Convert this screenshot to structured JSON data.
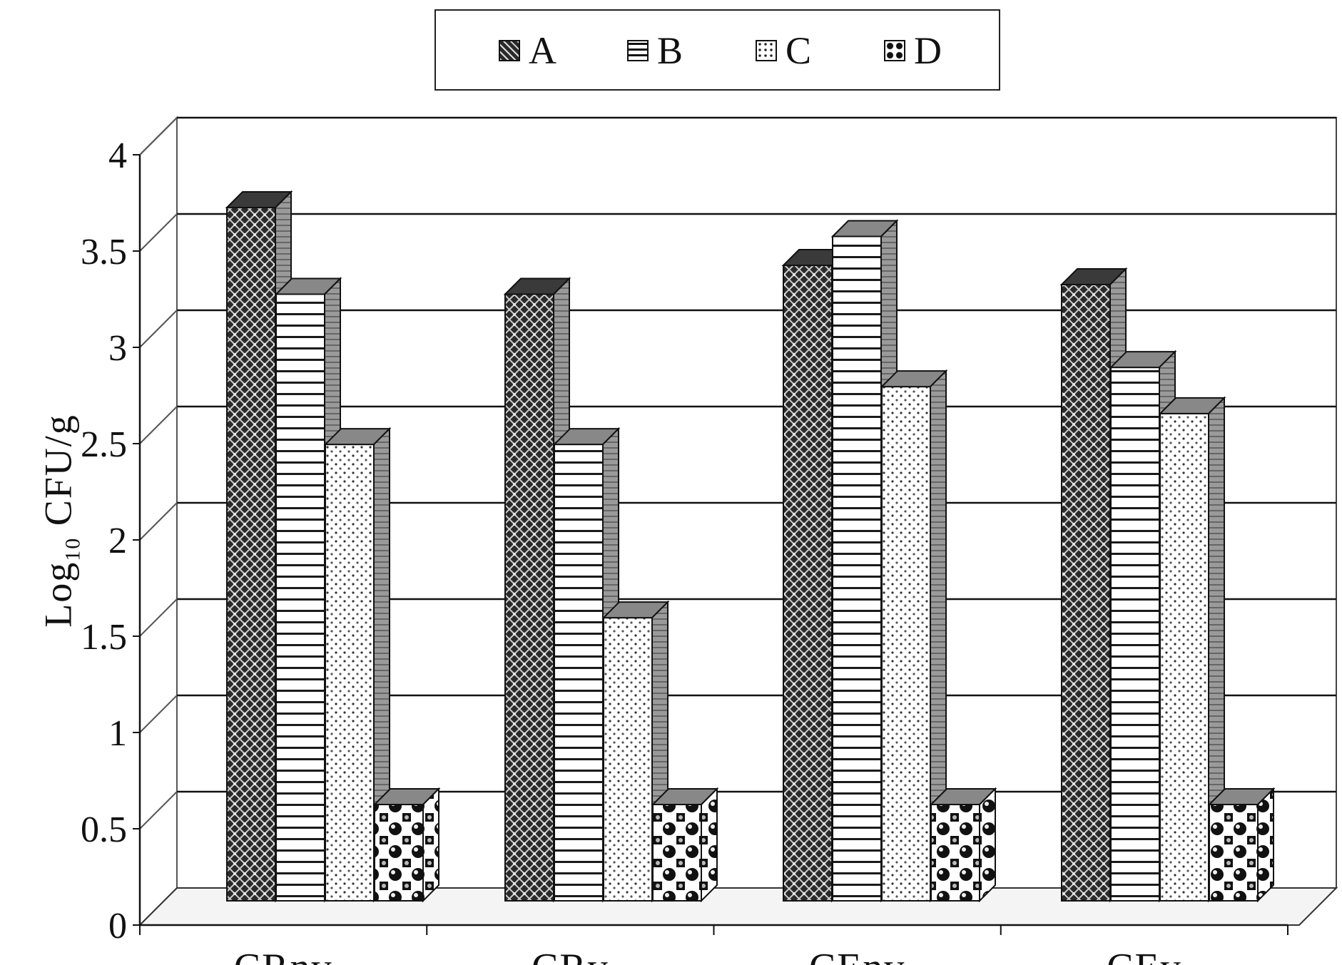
{
  "chart_data": {
    "type": "bar",
    "three_d": true,
    "ylabel": {
      "main": "Log",
      "sub": "10",
      "rest": " CFU/g"
    },
    "ylim": [
      0,
      4
    ],
    "yticks": [
      "0",
      "0.5",
      "1",
      "1.5",
      "2",
      "2.5",
      "3",
      "3.5",
      "4"
    ],
    "grid": true,
    "legend_position": "top-center",
    "categories": [
      "CRnv",
      "CRv",
      "CEnv",
      "CEv"
    ],
    "series": [
      {
        "name": "A",
        "values": [
          3.6,
          3.15,
          3.3,
          3.2
        ],
        "pattern": "dark-crosshatch"
      },
      {
        "name": "B",
        "values": [
          3.15,
          2.37,
          3.45,
          2.77
        ],
        "pattern": "horizontal-stripes"
      },
      {
        "name": "C",
        "values": [
          2.37,
          1.47,
          2.67,
          2.53
        ],
        "pattern": "dotted"
      },
      {
        "name": "D",
        "values": [
          0.5,
          0.5,
          0.5,
          0.5
        ],
        "pattern": "checker-dots"
      }
    ]
  }
}
